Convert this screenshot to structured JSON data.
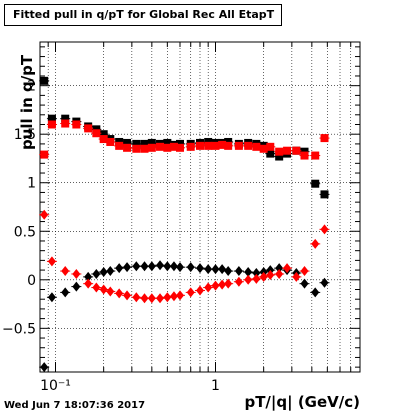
{
  "chart_data": {
    "type": "scatter",
    "title": "Fitted pull in q/pT for Global Rec All EtapT",
    "xlabel": "pT/|q| (GeV/c)",
    "ylabel": "pull in q/pT",
    "xscale": "log",
    "xlim": [
      0.08,
      8
    ],
    "ylim": [
      -0.95,
      2.45
    ],
    "x_ticks": [
      {
        "value": 0.1,
        "label": "10⁻¹"
      },
      {
        "value": 1,
        "label": "1"
      }
    ],
    "y_ticks": [
      -0.5,
      0,
      0.5,
      1,
      1.5,
      2
    ],
    "y_tick_labels": [
      "−0.5",
      "0",
      "0.5",
      "1",
      "1.5",
      "2"
    ],
    "grid": true,
    "timestamp": "Wed Jun  7 18:07:36 2017",
    "series": [
      {
        "color": "#000000",
        "marker": "square",
        "x": [
          0.085,
          0.095,
          0.115,
          0.135,
          0.16,
          0.18,
          0.2,
          0.22,
          0.25,
          0.28,
          0.32,
          0.36,
          0.4,
          0.45,
          0.5,
          0.55,
          0.6,
          0.7,
          0.8,
          0.9,
          1.0,
          1.1,
          1.2,
          1.4,
          1.6,
          1.8,
          2.0,
          2.2,
          2.5,
          2.8,
          3.2,
          3.6,
          4.2,
          4.8
        ],
        "y": [
          2.05,
          1.66,
          1.66,
          1.63,
          1.58,
          1.55,
          1.5,
          1.45,
          1.42,
          1.41,
          1.4,
          1.4,
          1.41,
          1.4,
          1.41,
          1.39,
          1.4,
          1.4,
          1.41,
          1.42,
          1.41,
          1.41,
          1.42,
          1.4,
          1.41,
          1.4,
          1.38,
          1.3,
          1.27,
          1.3,
          1.33,
          1.32,
          0.99,
          0.88
        ]
      },
      {
        "color": "#ff0000",
        "marker": "square",
        "x": [
          0.085,
          0.095,
          0.115,
          0.135,
          0.16,
          0.18,
          0.2,
          0.22,
          0.25,
          0.28,
          0.32,
          0.36,
          0.4,
          0.45,
          0.5,
          0.55,
          0.6,
          0.7,
          0.8,
          0.9,
          1.0,
          1.1,
          1.2,
          1.4,
          1.6,
          1.8,
          2.0,
          2.2,
          2.5,
          2.8,
          3.2,
          3.6,
          4.2,
          4.8
        ],
        "y": [
          1.29,
          1.6,
          1.61,
          1.6,
          1.56,
          1.51,
          1.45,
          1.42,
          1.38,
          1.36,
          1.35,
          1.35,
          1.36,
          1.37,
          1.36,
          1.37,
          1.36,
          1.37,
          1.38,
          1.38,
          1.38,
          1.39,
          1.38,
          1.38,
          1.38,
          1.37,
          1.35,
          1.37,
          1.32,
          1.33,
          1.33,
          1.28,
          1.28,
          1.46
        ]
      },
      {
        "color": "#000000",
        "marker": "diamond",
        "x": [
          0.085,
          0.095,
          0.115,
          0.135,
          0.16,
          0.18,
          0.2,
          0.22,
          0.25,
          0.28,
          0.32,
          0.36,
          0.4,
          0.45,
          0.5,
          0.55,
          0.6,
          0.7,
          0.8,
          0.9,
          1.0,
          1.1,
          1.2,
          1.4,
          1.6,
          1.8,
          2.0,
          2.2,
          2.5,
          2.8,
          3.2,
          3.6,
          4.2,
          4.8
        ],
        "y": [
          -0.9,
          -0.18,
          -0.13,
          -0.07,
          0.03,
          0.06,
          0.08,
          0.09,
          0.12,
          0.13,
          0.14,
          0.14,
          0.14,
          0.15,
          0.14,
          0.14,
          0.13,
          0.13,
          0.12,
          0.11,
          0.11,
          0.11,
          0.09,
          0.09,
          0.08,
          0.07,
          0.08,
          0.1,
          0.12,
          0.1,
          0.07,
          -0.04,
          -0.13,
          -0.03
        ]
      },
      {
        "color": "#ff0000",
        "marker": "diamond",
        "x": [
          0.085,
          0.095,
          0.115,
          0.135,
          0.16,
          0.18,
          0.2,
          0.22,
          0.25,
          0.28,
          0.32,
          0.36,
          0.4,
          0.45,
          0.5,
          0.55,
          0.6,
          0.7,
          0.8,
          0.9,
          1.0,
          1.1,
          1.2,
          1.4,
          1.6,
          1.8,
          2.0,
          2.2,
          2.5,
          2.8,
          3.2,
          3.6,
          4.2,
          4.8
        ],
        "y": [
          0.67,
          0.19,
          0.09,
          0.06,
          -0.04,
          -0.08,
          -0.1,
          -0.12,
          -0.14,
          -0.16,
          -0.18,
          -0.19,
          -0.19,
          -0.19,
          -0.18,
          -0.17,
          -0.16,
          -0.13,
          -0.11,
          -0.08,
          -0.06,
          -0.05,
          -0.04,
          -0.02,
          0.0,
          0.01,
          0.03,
          0.05,
          0.06,
          0.12,
          0.03,
          0.09,
          0.37,
          0.52
        ]
      }
    ]
  }
}
